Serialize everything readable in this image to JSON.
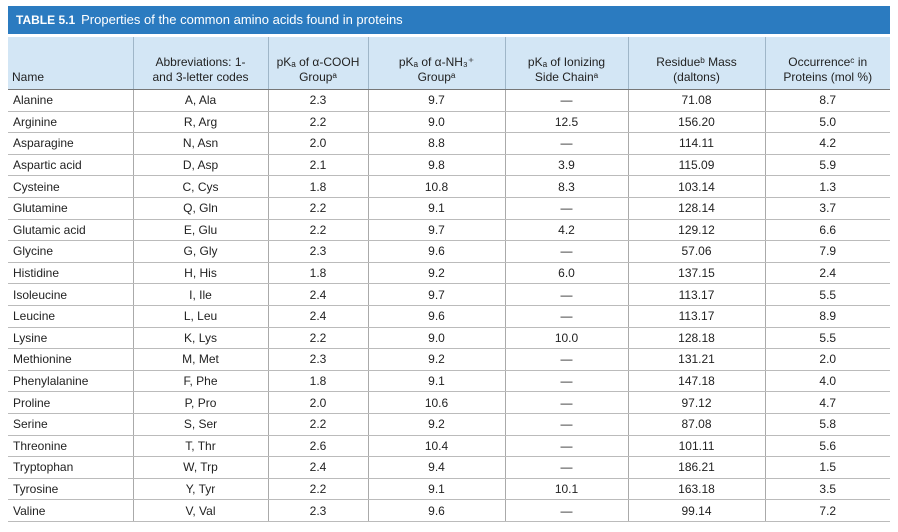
{
  "title": {
    "label": "TABLE 5.1",
    "text": "Properties of the common amino acids found in proteins"
  },
  "table": {
    "header": [
      [
        "Name"
      ],
      [
        "Abbreviations: 1-",
        "and 3-letter codes"
      ],
      [
        "pKₐ of α-COOH",
        "Groupᵃ"
      ],
      [
        "pKₐ of α-NH₃⁺",
        "Groupᵃ"
      ],
      [
        "pKₐ of Ionizing",
        "Side Chainᵃ"
      ],
      [
        "Residueᵇ Mass",
        "(daltons)"
      ],
      [
        "Occurrenceᶜ in",
        "Proteins (mol %)"
      ]
    ],
    "rows": [
      [
        "Alanine",
        "A, Ala",
        "2.3",
        "9.7",
        "—",
        "71.08",
        "8.7"
      ],
      [
        "Arginine",
        "R, Arg",
        "2.2",
        "9.0",
        "12.5",
        "156.20",
        "5.0"
      ],
      [
        "Asparagine",
        "N, Asn",
        "2.0",
        "8.8",
        "—",
        "114.11",
        "4.2"
      ],
      [
        "Aspartic acid",
        "D, Asp",
        "2.1",
        "9.8",
        "3.9",
        "115.09",
        "5.9"
      ],
      [
        "Cysteine",
        "C, Cys",
        "1.8",
        "10.8",
        "8.3",
        "103.14",
        "1.3"
      ],
      [
        "Glutamine",
        "Q, Gln",
        "2.2",
        "9.1",
        "—",
        "128.14",
        "3.7"
      ],
      [
        "Glutamic acid",
        "E, Glu",
        "2.2",
        "9.7",
        "4.2",
        "129.12",
        "6.6"
      ],
      [
        "Glycine",
        "G, Gly",
        "2.3",
        "9.6",
        "—",
        "57.06",
        "7.9"
      ],
      [
        "Histidine",
        "H, His",
        "1.8",
        "9.2",
        "6.0",
        "137.15",
        "2.4"
      ],
      [
        "Isoleucine",
        "I, Ile",
        "2.4",
        "9.7",
        "—",
        "113.17",
        "5.5"
      ],
      [
        "Leucine",
        "L, Leu",
        "2.4",
        "9.6",
        "—",
        "113.17",
        "8.9"
      ],
      [
        "Lysine",
        "K, Lys",
        "2.2",
        "9.0",
        "10.0",
        "128.18",
        "5.5"
      ],
      [
        "Methionine",
        "M, Met",
        "2.3",
        "9.2",
        "—",
        "131.21",
        "2.0"
      ],
      [
        "Phenylalanine",
        "F, Phe",
        "1.8",
        "9.1",
        "—",
        "147.18",
        "4.0"
      ],
      [
        "Proline",
        "P, Pro",
        "2.0",
        "10.6",
        "—",
        "97.12",
        "4.7"
      ],
      [
        "Serine",
        "S, Ser",
        "2.2",
        "9.2",
        "—",
        "87.08",
        "5.8"
      ],
      [
        "Threonine",
        "T, Thr",
        "2.6",
        "10.4",
        "—",
        "101.11",
        "5.6"
      ],
      [
        "Tryptophan",
        "W, Trp",
        "2.4",
        "9.4",
        "—",
        "186.21",
        "1.5"
      ],
      [
        "Tyrosine",
        "Y, Tyr",
        "2.2",
        "9.1",
        "10.1",
        "163.18",
        "3.5"
      ],
      [
        "Valine",
        "V, Val",
        "2.3",
        "9.6",
        "—",
        "99.14",
        "7.2"
      ]
    ]
  }
}
